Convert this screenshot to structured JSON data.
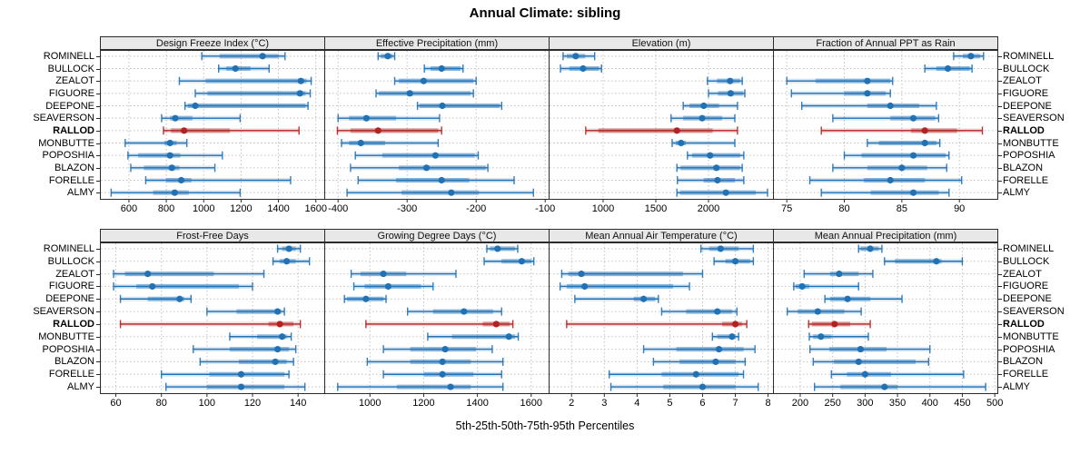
{
  "title": "Annual Climate: sibling",
  "caption": "5th-25th-50th-75th-95th Percentiles",
  "sites": [
    "ROMINELL",
    "BULLOCK",
    "ZEALOT",
    "FIGUORE",
    "DEEPONE",
    "SEAVERSON",
    "RALLOD",
    "MONBUTTE",
    "POPOSHIA",
    "BLAZON",
    "FORELLE",
    "ALMY"
  ],
  "highlight_site": "RALLOD",
  "colors": {
    "series": "#2171b5",
    "highlight": "#b22222",
    "grid": "#c2c2c2",
    "border": "#2b2b2b",
    "header_bg": "#e8e8e8"
  },
  "chart_data": {
    "type": "dotplot-percentiles",
    "percentiles": [
      5,
      25,
      50,
      75,
      95
    ],
    "legend_note": "each row shows 5th-95th line with caps, 25th-75th band, dot at median",
    "panels": [
      {
        "title": "Design Freeze Index (°C)",
        "xmin": 445,
        "xmax": 1645,
        "ticks": [
          600,
          800,
          1000,
          1200,
          1400,
          1600
        ],
        "rows": [
          [
            990,
            1085,
            1315,
            1400,
            1435
          ],
          [
            1080,
            1120,
            1170,
            1250,
            1350
          ],
          [
            870,
            1010,
            1520,
            1550,
            1575
          ],
          [
            955,
            1020,
            1515,
            1545,
            1570
          ],
          [
            900,
            915,
            955,
            1545,
            1558
          ],
          [
            775,
            820,
            848,
            940,
            1195
          ],
          [
            785,
            825,
            895,
            1140,
            1510
          ],
          [
            580,
            790,
            820,
            855,
            910
          ],
          [
            595,
            650,
            820,
            875,
            1100
          ],
          [
            610,
            680,
            830,
            870,
            1060
          ],
          [
            690,
            800,
            880,
            935,
            1465
          ],
          [
            505,
            730,
            845,
            920,
            1195
          ]
        ]
      },
      {
        "title": "Effective Precipitation (mm)",
        "xmin": -420,
        "xmax": -95,
        "ticks": [
          -400,
          -300,
          -200,
          -100
        ],
        "rows": [
          [
            -342,
            -338,
            -328,
            -321,
            -318
          ],
          [
            -275,
            -266,
            -250,
            -223,
            -219
          ],
          [
            -318,
            -312,
            -276,
            -204,
            -200
          ],
          [
            -345,
            -341,
            -296,
            -208,
            -204
          ],
          [
            -285,
            -282,
            -249,
            -166,
            -163
          ],
          [
            -400,
            -384,
            -359,
            -316,
            -253
          ],
          [
            -401,
            -382,
            -342,
            -255,
            -250
          ],
          [
            -395,
            -384,
            -367,
            -332,
            -255
          ],
          [
            -375,
            -336,
            -259,
            -202,
            -197
          ],
          [
            -382,
            -312,
            -272,
            -186,
            -183
          ],
          [
            -371,
            -316,
            -250,
            -210,
            -145
          ],
          [
            -387,
            -308,
            -236,
            -196,
            -117
          ]
        ]
      },
      {
        "title": "Elevation (m)",
        "xmin": 483,
        "xmax": 2612,
        "ticks": [
          1000,
          1500,
          2000
        ],
        "rows": [
          [
            620,
            655,
            740,
            830,
            920
          ],
          [
            595,
            680,
            810,
            960,
            985
          ],
          [
            1990,
            2080,
            2205,
            2300,
            2320
          ],
          [
            2000,
            2090,
            2210,
            2330,
            2345
          ],
          [
            1760,
            1820,
            1955,
            2100,
            2275
          ],
          [
            1645,
            1760,
            1940,
            2130,
            2250
          ],
          [
            835,
            955,
            1700,
            2040,
            2275
          ],
          [
            1655,
            1690,
            1740,
            1785,
            2250
          ],
          [
            1800,
            1845,
            2015,
            2300,
            2335
          ],
          [
            1700,
            1735,
            2075,
            2300,
            2320
          ],
          [
            1705,
            1955,
            2085,
            2250,
            2335
          ],
          [
            1700,
            1730,
            2165,
            2450,
            2560
          ]
        ]
      },
      {
        "title": "Fraction of Annual PPT as Rain",
        "xmin": 73.8,
        "xmax": 93.3,
        "ticks": [
          75,
          80,
          85,
          90
        ],
        "rows": [
          [
            89.5,
            90.3,
            91,
            91.8,
            92.1
          ],
          [
            87,
            88,
            89,
            90.9,
            91.1
          ],
          [
            75,
            77.5,
            82,
            84,
            84.2
          ],
          [
            75.4,
            80,
            82,
            83.6,
            84
          ],
          [
            76.3,
            82,
            84,
            86.5,
            88
          ],
          [
            79,
            84,
            86,
            87.9,
            88.2
          ],
          [
            78,
            85.8,
            87,
            89.8,
            92
          ],
          [
            82,
            83,
            87,
            88,
            88.3
          ],
          [
            80,
            81.5,
            86,
            88.8,
            89.1
          ],
          [
            79,
            82,
            85,
            87.2,
            88.9
          ],
          [
            77,
            81.7,
            84,
            87,
            90.2
          ],
          [
            78,
            82.3,
            86,
            88.2,
            89.1
          ]
        ]
      },
      {
        "title": "Frost-Free Days",
        "xmin": 53,
        "xmax": 151.5,
        "ticks": [
          60,
          80,
          100,
          120,
          140
        ],
        "rows": [
          [
            131,
            133,
            136,
            139,
            141
          ],
          [
            129,
            132,
            135,
            139,
            145
          ],
          [
            59,
            64,
            74,
            103,
            125
          ],
          [
            59,
            69,
            76,
            114,
            120
          ],
          [
            62,
            74,
            88,
            90,
            93
          ],
          [
            100,
            113,
            131,
            132.5,
            134
          ],
          [
            62,
            127,
            132,
            138,
            141
          ],
          [
            110,
            122,
            133,
            135,
            137
          ],
          [
            94,
            110,
            131,
            136,
            139
          ],
          [
            97,
            114,
            130,
            135,
            138
          ],
          [
            80,
            101,
            115,
            134,
            136
          ],
          [
            82,
            100,
            115,
            134,
            143
          ]
        ]
      },
      {
        "title": "Growing Degree Days (°C)",
        "xmin": 830,
        "xmax": 1665,
        "ticks": [
          1000,
          1200,
          1400,
          1600
        ],
        "rows": [
          [
            1435,
            1447,
            1475,
            1540,
            1550
          ],
          [
            1425,
            1490,
            1565,
            1600,
            1610
          ],
          [
            930,
            965,
            1050,
            1135,
            1320
          ],
          [
            940,
            980,
            1068,
            1190,
            1235
          ],
          [
            905,
            915,
            985,
            1050,
            1060
          ],
          [
            1140,
            1235,
            1350,
            1458,
            1490
          ],
          [
            985,
            1420,
            1470,
            1520,
            1532
          ],
          [
            1215,
            1305,
            1517,
            1540,
            1552
          ],
          [
            1050,
            1150,
            1280,
            1395,
            1455
          ],
          [
            990,
            1150,
            1270,
            1375,
            1495
          ],
          [
            1050,
            1200,
            1270,
            1385,
            1490
          ],
          [
            880,
            1100,
            1300,
            1375,
            1495
          ]
        ]
      },
      {
        "title": "Mean Annual Air Temperature (°C)",
        "xmin": 1.3,
        "xmax": 8.15,
        "ticks": [
          2,
          3,
          4,
          5,
          6,
          7,
          8
        ],
        "rows": [
          [
            5.95,
            6.2,
            6.55,
            7.1,
            7.55
          ],
          [
            6.35,
            6.7,
            7.0,
            7.45,
            7.55
          ],
          [
            1.7,
            1.9,
            2.3,
            5.4,
            6.0
          ],
          [
            1.65,
            1.85,
            2.4,
            5.1,
            5.6
          ],
          [
            2.1,
            3.9,
            4.2,
            4.55,
            4.65
          ],
          [
            4.75,
            5.5,
            6.45,
            6.9,
            7.05
          ],
          [
            1.85,
            6.6,
            7.0,
            7.2,
            7.35
          ],
          [
            6.3,
            6.45,
            6.9,
            7.0,
            7.1
          ],
          [
            4.2,
            5.2,
            6.5,
            7.25,
            7.6
          ],
          [
            4.5,
            5.3,
            6.4,
            7.0,
            7.3
          ],
          [
            3.15,
            4.75,
            5.8,
            7.1,
            7.25
          ],
          [
            3.2,
            4.8,
            6.0,
            7.0,
            7.7
          ]
        ]
      },
      {
        "title": "Mean Annual Precipitation (mm)",
        "xmin": 158,
        "xmax": 504,
        "ticks": [
          200,
          250,
          300,
          350,
          400,
          450,
          500
        ],
        "rows": [
          [
            290,
            293,
            308,
            321,
            326
          ],
          [
            330,
            346,
            410,
            418,
            450
          ],
          [
            206,
            246,
            260,
            290,
            312
          ],
          [
            190,
            193,
            203,
            214,
            290
          ],
          [
            238,
            246,
            273,
            308,
            357
          ],
          [
            180,
            196,
            227,
            268,
            294
          ],
          [
            213,
            218,
            253,
            277,
            308
          ],
          [
            214,
            220,
            232,
            248,
            305
          ],
          [
            215,
            245,
            293,
            333,
            400
          ],
          [
            220,
            252,
            290,
            378,
            398
          ],
          [
            248,
            272,
            300,
            340,
            452
          ],
          [
            222,
            262,
            330,
            350,
            486
          ]
        ]
      }
    ]
  }
}
